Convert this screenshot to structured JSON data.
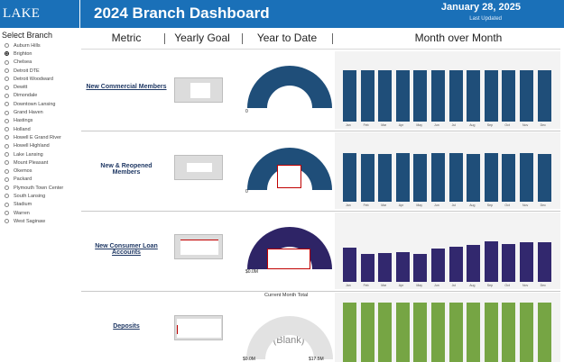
{
  "header": {
    "logo": "LAKE TRUST",
    "title": "2024 Branch Dashboard",
    "date": "January 28, 2025",
    "updated_label": "Last Updated"
  },
  "sidebar": {
    "title": "Select Branch",
    "selected": "Brighton",
    "items": [
      "Auburn Hills",
      "Brighton",
      "Chelsea",
      "Detroit DTE",
      "Detroit Woodward",
      "Dewitt",
      "Dimondale",
      "Downtown Lansing",
      "Grand Haven",
      "Hastings",
      "Holland",
      "Howell E Grand River",
      "Howell Highland",
      "Lake Lansing",
      "Mount Pleasant",
      "Okemos",
      "Packard",
      "Plymouth Town Center",
      "South Lansing",
      "Stadium",
      "Warren",
      "West Saginaw"
    ]
  },
  "columns": {
    "metric": "Metric",
    "yearly_goal": "Yearly Goal",
    "year_to_date": "Year to Date",
    "month_over_month": "Month over Month"
  },
  "months": [
    "Jan",
    "Feb",
    "Mar",
    "Apr",
    "May",
    "Jun",
    "Jul",
    "Aug",
    "Sep",
    "Oct",
    "Nov",
    "Dec"
  ],
  "rows": [
    {
      "metric": "New Commercial Members",
      "gauge_low_label": "0",
      "gauge_fill": 1.0,
      "gauge_color": "#1f4e79",
      "bar_color": "#1f4e79",
      "bar_levels": [
        0.77,
        0.77,
        0.77,
        0.77,
        0.77,
        0.77,
        0.77,
        0.77,
        0.77,
        0.77,
        0.77,
        0.77
      ]
    },
    {
      "metric": "New & Reopened Members",
      "gauge_low_label": "0",
      "gauge_fill": 1.0,
      "gauge_color": "#1f4e79",
      "bar_color": "#1f4e79",
      "bar_levels": [
        0.74,
        0.73,
        0.72,
        0.74,
        0.73,
        0.74,
        0.74,
        0.73,
        0.74,
        0.73,
        0.74,
        0.73
      ]
    },
    {
      "metric": "New Consumer Loan Accounts",
      "gauge_low_label": "$0.0M",
      "gauge_fill": 1.0,
      "gauge_color": "#2e2466",
      "bar_color": "#32286e",
      "bar_levels": [
        0.52,
        0.43,
        0.44,
        0.45,
        0.42,
        0.5,
        0.54,
        0.56,
        0.61,
        0.58,
        0.6,
        0.6
      ]
    },
    {
      "metric": "Deposits",
      "gauge_caption": "Current Month Total",
      "gauge_low_label": "$0.0M",
      "gauge_high_label": "$17.5M",
      "gauge_center_text": "(Blank)",
      "gauge_fill": 0.0,
      "gauge_color": "#e2e2e2",
      "bar_color": "#76a544",
      "bar_levels": [
        0.9,
        0.9,
        0.9,
        0.9,
        0.9,
        0.9,
        0.9,
        0.9,
        0.9,
        0.9,
        0.9,
        0.9
      ]
    }
  ]
}
